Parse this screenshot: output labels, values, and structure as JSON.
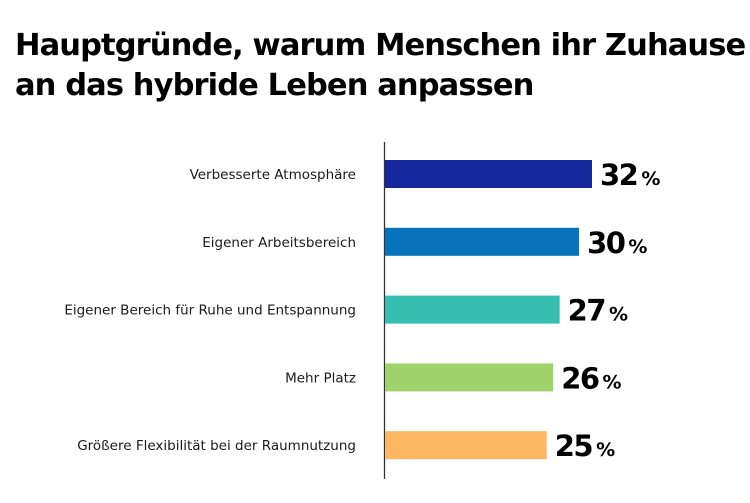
{
  "chart_data": {
    "type": "bar",
    "orientation": "horizontal",
    "title": "Hauptgründe, warum Menschen ihr Zuhause an das hybride Leben anpassen",
    "title_lines": [
      "Hauptgründe, warum Menschen ihr Zuhause",
      "an das hybride Leben anpassen"
    ],
    "categories": [
      "Verbesserte Atmosphäre",
      "Eigener Arbeitsbereich",
      "Eigener Bereich für Ruhe und Entspannung",
      "Mehr Platz",
      "Größere Flexibilität bei der Raumnutzung"
    ],
    "values": [
      32,
      30,
      27,
      26,
      25
    ],
    "value_suffix": "%",
    "colors": [
      "#15279c",
      "#0773bb",
      "#36bfb1",
      "#9fd36b",
      "#fdb762"
    ],
    "xlabel": "",
    "ylabel": "",
    "xlim": [
      0,
      32
    ],
    "grid": false,
    "legend": "none"
  }
}
